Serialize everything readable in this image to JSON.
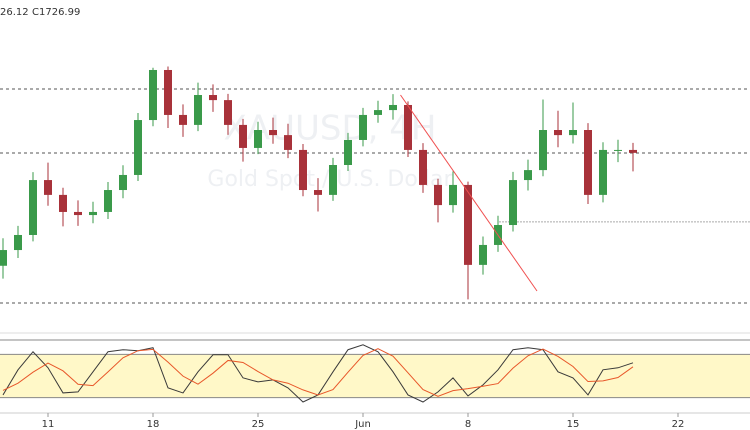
{
  "header": [
    "26.12",
    "C1726.99"
  ],
  "chart_data": [
    {
      "type": "candlestick",
      "watermark": [
        "XAUUSD, 4H",
        "Gold Spot / U.S. Dollar"
      ],
      "x": [
        8,
        9,
        10,
        11,
        12,
        13,
        14,
        15,
        16,
        17,
        18,
        19,
        20,
        21,
        22,
        23,
        24,
        25,
        26,
        27,
        28,
        29,
        30,
        31,
        32,
        33,
        34,
        35,
        36,
        37,
        38,
        39,
        40,
        41,
        42,
        43,
        44,
        45,
        46,
        47,
        48,
        49,
        50
      ],
      "open": [
        1676.0,
        1683.1,
        1689.9,
        1714.7,
        1708.0,
        1700.3,
        1698.9,
        1700.3,
        1710.2,
        1717.0,
        1741.8,
        1764.4,
        1744.1,
        1739.6,
        1753.1,
        1750.8,
        1739.6,
        1729.2,
        1737.3,
        1735.0,
        1728.3,
        1710.2,
        1708.0,
        1721.5,
        1732.8,
        1744.1,
        1746.3,
        1748.6,
        1728.3,
        1712.5,
        1703.4,
        1712.5,
        1676.4,
        1685.4,
        1694.4,
        1714.7,
        1719.2,
        1737.3,
        1735.0,
        1737.3,
        1708.0,
        1728.3,
        1728.3
      ],
      "high": [
        1688.4,
        1694.0,
        1718.3,
        1722.6,
        1711.2,
        1705.5,
        1704.9,
        1713.8,
        1721.4,
        1745.0,
        1765.4,
        1766.0,
        1748.9,
        1758.7,
        1757.9,
        1753.6,
        1742.3,
        1741.0,
        1742.9,
        1740.1,
        1731.0,
        1715.6,
        1724.7,
        1736.0,
        1747.3,
        1750.5,
        1753.5,
        1750.2,
        1731.4,
        1715.3,
        1718.6,
        1714.0,
        1689.2,
        1698.6,
        1718.4,
        1723.9,
        1751.1,
        1746.0,
        1749.7,
        1740.4,
        1731.8,
        1732.9,
        1731.5
      ],
      "low": [
        1670.2,
        1679.5,
        1687.0,
        1703.1,
        1693.8,
        1694.0,
        1695.2,
        1697.1,
        1706.5,
        1714.3,
        1739.0,
        1738.2,
        1734.2,
        1736.8,
        1745.5,
        1735.1,
        1723.0,
        1726.4,
        1731.1,
        1724.6,
        1707.4,
        1700.5,
        1705.3,
        1718.8,
        1729.9,
        1740.6,
        1742.0,
        1725.1,
        1708.9,
        1695.6,
        1700.0,
        1660.8,
        1672.0,
        1682.3,
        1691.5,
        1710.0,
        1716.4,
        1729.5,
        1731.2,
        1703.9,
        1704.6,
        1722.8,
        1718.6
      ],
      "close": [
        1683.1,
        1689.9,
        1714.7,
        1708.0,
        1700.3,
        1698.9,
        1700.3,
        1710.2,
        1717.0,
        1741.8,
        1764.4,
        1744.1,
        1739.6,
        1753.1,
        1750.8,
        1739.6,
        1729.2,
        1737.3,
        1735.0,
        1728.3,
        1710.2,
        1708.0,
        1721.5,
        1732.8,
        1744.1,
        1746.3,
        1748.6,
        1728.3,
        1712.5,
        1703.4,
        1712.5,
        1676.4,
        1685.4,
        1694.4,
        1714.7,
        1719.2,
        1737.3,
        1735.0,
        1737.3,
        1708.0,
        1728.3,
        1728.3,
        1726.99
      ],
      "up_color": "#3a9a4a",
      "down_color": "#a8323a",
      "levels": [
        {
          "value": 1755.8,
          "style": "dashed"
        },
        {
          "value": 1726.9,
          "style": "dashed"
        },
        {
          "value": 1659.2,
          "style": "dashed"
        },
        {
          "value": 1695.8,
          "style": "dotted",
          "from": 41.1
        }
      ],
      "trendline": {
        "x": [
          34.5,
          43.6
        ],
        "y": [
          1753.1,
          1664.6
        ],
        "color": "#f05050"
      },
      "xlim": [
        7.8,
        57.8
      ],
      "ylim": [
        1647,
        1796
      ]
    },
    {
      "type": "line",
      "x": [
        8,
        9,
        10,
        11,
        12,
        13,
        14,
        15,
        16,
        17,
        18,
        19,
        20,
        21,
        22,
        23,
        24,
        25,
        26,
        27,
        28,
        29,
        30,
        31,
        32,
        33,
        34,
        35,
        36,
        37,
        38,
        39,
        40,
        41,
        42,
        43,
        44,
        45,
        46,
        47,
        48,
        49,
        50
      ],
      "series": [
        {
          "color": "#3a3a3a",
          "values": [
            23.7,
            58.6,
            83.7,
            61.4,
            26.5,
            27.9,
            55.8,
            83.7,
            86.5,
            85.1,
            89.3,
            33.5,
            26.5,
            55.8,
            79.5,
            79.5,
            47.4,
            41.8,
            44.6,
            33.5,
            13.9,
            23.7,
            55.8,
            86.5,
            93.4,
            83.7,
            55.8,
            23.7,
            13.9,
            27.9,
            47.4,
            22.3,
            37.7,
            58.6,
            86.5,
            89.3,
            86.5,
            55.8,
            47.4,
            23.7,
            58.6,
            61.4,
            68.3
          ]
        },
        {
          "color": "#e8572a",
          "values": [
            30.0,
            40.0,
            55.3,
            67.9,
            57.2,
            38.6,
            36.7,
            55.8,
            75.3,
            85.1,
            87.0,
            69.3,
            49.8,
            38.6,
            53.9,
            71.6,
            68.8,
            56.2,
            44.6,
            40.0,
            30.7,
            23.7,
            31.1,
            55.3,
            78.6,
            87.9,
            77.6,
            54.4,
            31.1,
            21.8,
            29.7,
            32.5,
            35.8,
            39.5,
            60.9,
            78.1,
            87.4,
            77.2,
            63.2,
            42.3,
            43.2,
            47.9,
            62.8
          ]
        }
      ],
      "bands": [
        20,
        80
      ],
      "band_color": "#fff8c8",
      "xlim": [
        7.8,
        57.8
      ],
      "ylim": [
        0,
        100
      ],
      "xticks": [
        11,
        18,
        25,
        {
          "value": 32,
          "label": "Jun"
        },
        {
          "value": 39,
          "label": "8"
        },
        {
          "value": 46,
          "label": "15"
        },
        {
          "value": 53,
          "label": "22"
        }
      ]
    }
  ]
}
